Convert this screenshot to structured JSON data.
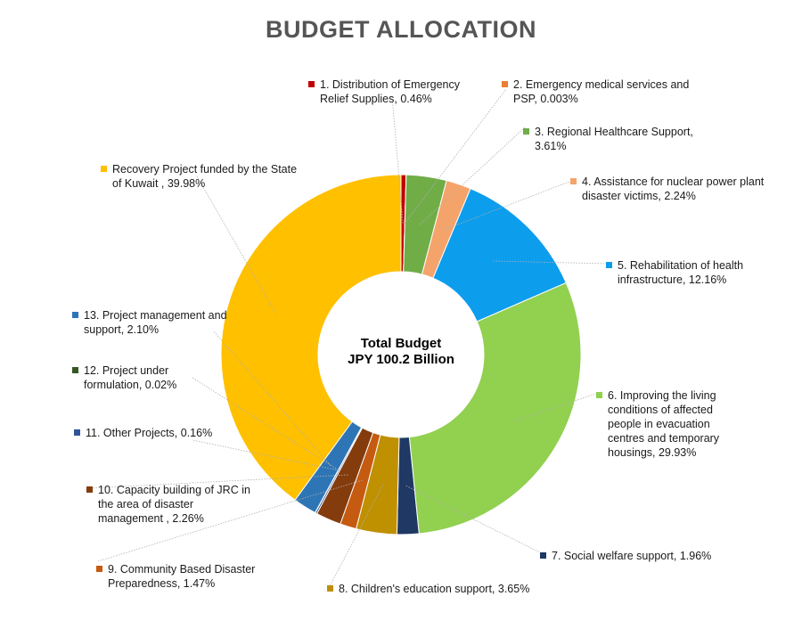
{
  "chart_data": {
    "type": "pie",
    "title": "BUDGET ALLOCATION",
    "center_label": [
      "Total Budget",
      "JPY 100.2 Billion"
    ],
    "series": [
      {
        "label": "1. Distribution of Emergency Relief Supplies, 0.46%",
        "value": 0.46,
        "color": "#C00000"
      },
      {
        "label": "2. Emergency medical services and PSP, 0.003%",
        "value": 0.003,
        "color": "#ED7D31"
      },
      {
        "label": "3. Regional Healthcare Support, 3.61%",
        "value": 3.61,
        "color": "#70AD47"
      },
      {
        "label": "4. Assistance for nuclear power plant disaster victims, 2.24%",
        "value": 2.24,
        "color": "#F4A46A"
      },
      {
        "label": "5. Rehabilitation of health infrastructure, 12.16%",
        "value": 12.16,
        "color": "#0D9DED"
      },
      {
        "label": "6. Improving the living conditions of affected people in evacuation centres and temporary housings, 29.93%",
        "value": 29.93,
        "color": "#92D050"
      },
      {
        "label": "7. Social welfare support, 1.96%",
        "value": 1.96,
        "color": "#1F3864"
      },
      {
        "label": "8. Children's education support, 3.65%",
        "value": 3.65,
        "color": "#BF9000"
      },
      {
        "label": "9. Community Based Disaster Preparedness, 1.47%",
        "value": 1.47,
        "color": "#C55A11"
      },
      {
        "label": "10. Capacity building of JRC in the area of disaster management , 2.26%",
        "value": 2.26,
        "color": "#843C0C"
      },
      {
        "label": "11. Other Projects, 0.16%",
        "value": 0.16,
        "color": "#2E5597"
      },
      {
        "label": "12. Project under formulation, 0.02%",
        "value": 0.02,
        "color": "#375623"
      },
      {
        "label": "13. Project management and support, 2.10%",
        "value": 2.1,
        "color": "#2E75B6"
      },
      {
        "label": "Recovery Project funded by the State of Kuwait  , 39.98%",
        "value": 39.98,
        "color": "#FFC000"
      }
    ]
  }
}
